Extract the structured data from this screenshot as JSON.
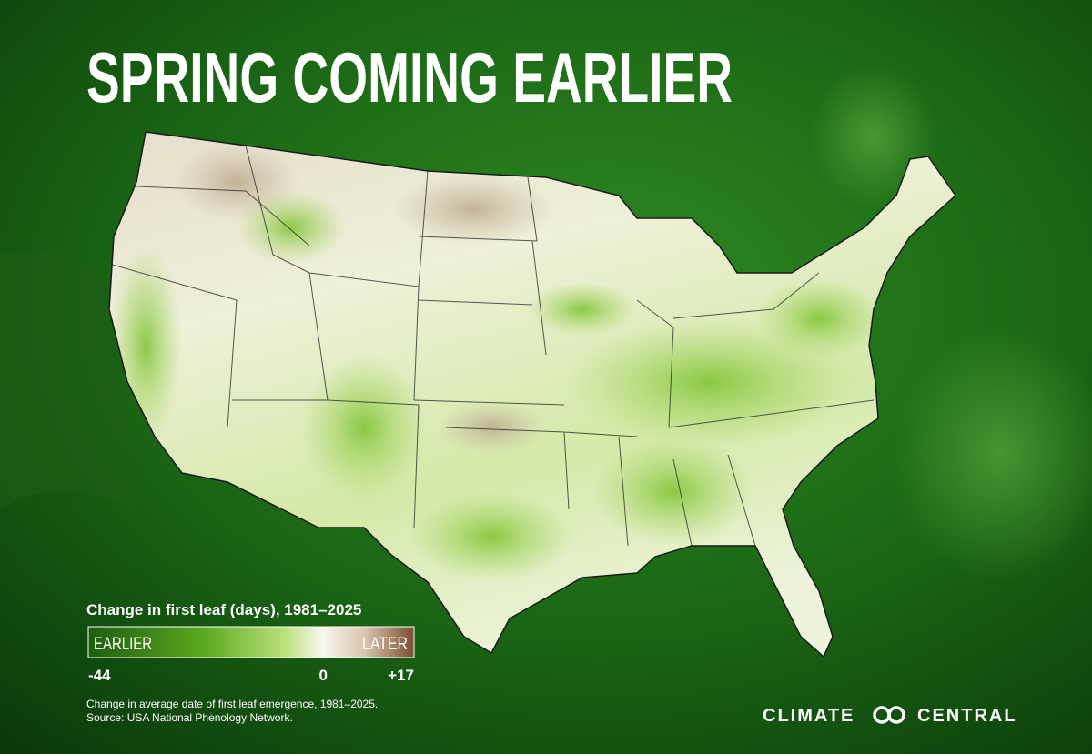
{
  "header": {
    "title": "SPRING COMING EARLIER"
  },
  "legend": {
    "title": "Change in first leaf (days), 1981–2025",
    "earlier_label": "EARLIER",
    "later_label": "LATER",
    "ticks": [
      {
        "value": -44,
        "label": "-44"
      },
      {
        "value": 0,
        "label": "0"
      },
      {
        "value": 17,
        "label": "+17"
      }
    ]
  },
  "footer": {
    "note": "Change in average date of first leaf emergence, 1981–2025.",
    "source": "Source: USA National Phenology Network."
  },
  "logo": {
    "left": "CLIMATE",
    "right": "CENTRAL"
  }
}
